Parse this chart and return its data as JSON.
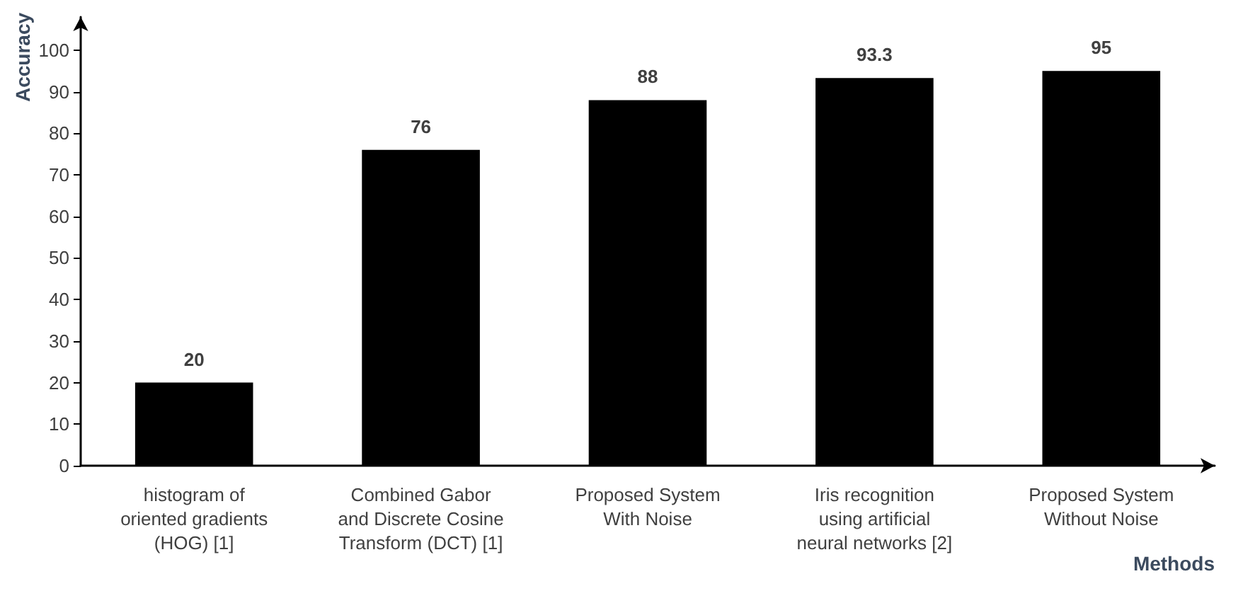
{
  "chart_data": {
    "type": "bar",
    "xlabel": "Methods",
    "ylabel": "Accuracy",
    "categories": [
      "histogram of\noriented gradients\n(HOG) [1]",
      "Combined Gabor\nand Discrete Cosine\nTransform (DCT) [1]",
      "Proposed System\nWith Noise",
      "Iris recognition\nusing artificial\nneural networks [2]",
      "Proposed System\nWithout Noise"
    ],
    "values": [
      20,
      76,
      88,
      93.3,
      95
    ],
    "color": "#000000",
    "ylim": [
      0,
      108
    ],
    "yticks": [
      0,
      10,
      20,
      30,
      40,
      50,
      60,
      70,
      80,
      90,
      100
    ],
    "grid": false,
    "data_labels": true
  }
}
